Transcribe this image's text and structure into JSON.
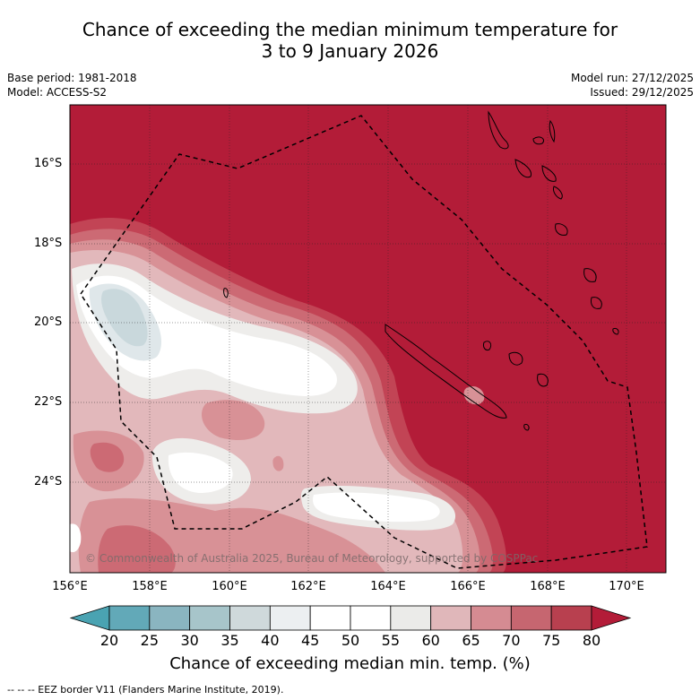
{
  "title": {
    "line1": "Chance of exceeding the median minimum temperature for",
    "line2": "3 to 9 January 2026"
  },
  "meta": {
    "base_period": "Base period: 1981-2018",
    "model": "Model: ACCESS-S2",
    "model_run": "Model run: 27/12/2025",
    "issued": "Issued: 29/12/2025"
  },
  "map": {
    "latitude_labels": [
      "16°S",
      "18°S",
      "20°S",
      "22°S",
      "24°S"
    ],
    "longitude_labels": [
      "156°E",
      "158°E",
      "160°E",
      "162°E",
      "164°E",
      "166°E",
      "168°E",
      "170°E"
    ],
    "watermark": "© Commonwealth of Australia 2025, Bureau of Meteorology, supported by COSPPac",
    "colors": {
      "very_high": "#b31c38",
      "high": "#c24455",
      "mid_high": "#cc6a74",
      "moderate": "#d89196",
      "low_high": "#e2b8bb",
      "neutral": "#eeedeb",
      "white": "#ffffff",
      "cool": "#dfe7ea",
      "cooler": "#c9d8dc"
    }
  },
  "colorbar": {
    "ticks": [
      "20",
      "25",
      "30",
      "35",
      "40",
      "45",
      "50",
      "55",
      "60",
      "65",
      "70",
      "75",
      "80"
    ],
    "colors": [
      "#62a9b8",
      "#8ab5c0",
      "#a7c5ca",
      "#cfd9db",
      "#eceff1",
      "#ffffff",
      "#ffffff",
      "#ebebe9",
      "#e0b7ba",
      "#d58b92",
      "#c66670",
      "#b8404f"
    ],
    "under_color": "#4aa3b2",
    "over_color": "#b31c38",
    "label": "Chance of exceeding median min. temp. (%)"
  },
  "legend_note": "--  --  -- EEZ border V11 (Flanders Marine Institute, 2019)."
}
